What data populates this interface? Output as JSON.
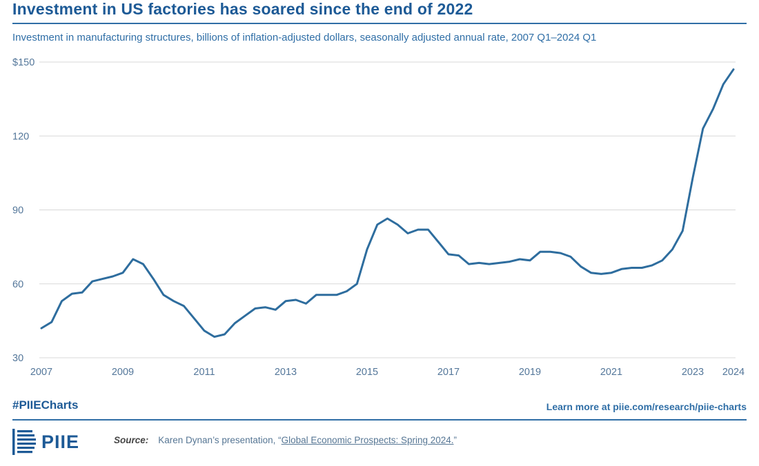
{
  "header": {
    "title": "Investment in US factories has soared since the end of 2022",
    "subtitle": "Investment in manufacturing structures, billions of inflation-adjusted dollars, seasonally adjusted annual rate, 2007 Q1–2024 Q1"
  },
  "chart_data": {
    "type": "line",
    "title": "Investment in US factories has soared since the end of 2022",
    "series_name": "Investment in manufacturing structures",
    "unit": "billions of inflation-adjusted dollars, seasonally adjusted annual rate",
    "frequency": "quarterly",
    "x_start": "2007 Q1",
    "x_end": "2024 Q1",
    "ylim": [
      30,
      150
    ],
    "yticks": [
      150,
      120,
      90,
      60,
      30
    ],
    "ytick_labels": [
      "$150",
      "120",
      "90",
      "60",
      "30"
    ],
    "xticks": [
      2007,
      2009,
      2011,
      2013,
      2015,
      2017,
      2019,
      2021,
      2023,
      2024
    ],
    "grid": true,
    "legend": false,
    "line_color": "#2e6d9e",
    "values": [
      42,
      44.5,
      53,
      56,
      56.5,
      61,
      62,
      63,
      64.5,
      70,
      68,
      62,
      55.5,
      53,
      51,
      46,
      41,
      38.5,
      39.5,
      44,
      47,
      50,
      50.5,
      49.5,
      53,
      53.5,
      52,
      55.5,
      55.5,
      55.5,
      57,
      60,
      74,
      84,
      86.5,
      84,
      80.5,
      82,
      82,
      77,
      72,
      71.5,
      68,
      68.5,
      68,
      68.5,
      69,
      70,
      69.5,
      73,
      73,
      72.5,
      71,
      67,
      64.5,
      64,
      64.5,
      66,
      66.5,
      66.5,
      67.5,
      69.5,
      74,
      81.5,
      103,
      123,
      131,
      141,
      147
    ]
  },
  "footer": {
    "hashtag": "#PIIECharts",
    "learn_more": "Learn more at piie.com/research/piie-charts",
    "source_label": "Source:",
    "source_prefix": "Karen Dynan’s presentation, “",
    "source_link": "Global Economic Prospects: Spring 2024.",
    "source_suffix": "”",
    "logo_text": "PIIE"
  },
  "colors": {
    "brand_blue": "#1d5a96",
    "accent_blue": "#2f6ea6",
    "axis_text": "#54779a",
    "grid": "#d8d8d8",
    "line": "#2e6d9e"
  }
}
